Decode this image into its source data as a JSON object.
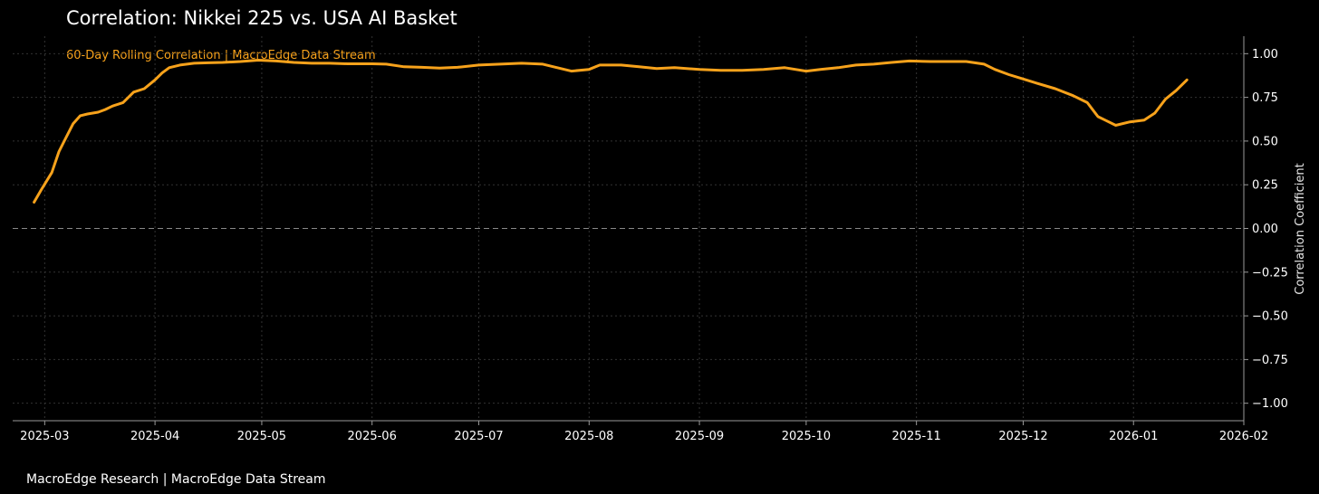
{
  "chart_data": {
    "type": "line",
    "title": "Correlation: Nikkei 225 vs. USA AI Basket",
    "subtitle": "60-Day Rolling Correlation | MacroEdge Data Stream",
    "xlabel": "",
    "ylabel": "Correlation Coefficient",
    "ylim": [
      -1.1,
      1.1
    ],
    "xlim": [
      "2025-02-20",
      "2026-02-01"
    ],
    "x_ticks": [
      "2025-03",
      "2025-04",
      "2025-05",
      "2025-06",
      "2025-07",
      "2025-08",
      "2025-09",
      "2025-10",
      "2025-11",
      "2025-12",
      "2026-01",
      "2026-02"
    ],
    "y_ticks": [
      1.0,
      0.75,
      0.5,
      0.25,
      0.0,
      -0.25,
      -0.5,
      -0.75,
      -1.0
    ],
    "y_tick_labels": [
      "1.00",
      "0.75",
      "0.50",
      "0.25",
      "0.00",
      "−0.25",
      "−0.50",
      "−0.75",
      "−1.00"
    ],
    "grid": true,
    "reference_line": 0.0,
    "line_color": "#F7A21B",
    "series": [
      {
        "x": [
          "2025-02-26",
          "2025-02-28",
          "2025-03-03",
          "2025-03-05",
          "2025-03-07",
          "2025-03-09",
          "2025-03-11",
          "2025-03-13",
          "2025-03-16",
          "2025-03-18",
          "2025-03-20",
          "2025-03-23",
          "2025-03-26",
          "2025-03-29",
          "2025-04-01",
          "2025-04-03",
          "2025-04-05",
          "2025-04-08",
          "2025-04-12",
          "2025-04-16",
          "2025-04-20",
          "2025-04-25",
          "2025-04-30",
          "2025-05-05",
          "2025-05-10",
          "2025-05-15",
          "2025-05-20",
          "2025-05-25",
          "2025-06-01",
          "2025-06-05",
          "2025-06-10",
          "2025-06-15",
          "2025-06-20",
          "2025-06-25",
          "2025-07-01",
          "2025-07-07",
          "2025-07-13",
          "2025-07-19",
          "2025-07-22",
          "2025-07-27",
          "2025-08-01",
          "2025-08-04",
          "2025-08-10",
          "2025-08-15",
          "2025-08-20",
          "2025-08-25",
          "2025-09-01",
          "2025-09-07",
          "2025-09-13",
          "2025-09-19",
          "2025-09-25",
          "2025-10-01",
          "2025-10-05",
          "2025-10-10",
          "2025-10-15",
          "2025-10-20",
          "2025-10-25",
          "2025-10-30",
          "2025-11-05",
          "2025-11-10",
          "2025-11-15",
          "2025-11-20",
          "2025-11-23",
          "2025-11-27",
          "2025-12-01",
          "2025-12-05",
          "2025-12-10",
          "2025-12-15",
          "2025-12-19",
          "2025-12-22",
          "2025-12-24",
          "2025-12-27",
          "2025-12-31",
          "2026-01-04",
          "2026-01-07",
          "2026-01-10",
          "2026-01-13",
          "2026-01-16"
        ],
        "values": [
          0.15,
          0.22,
          0.32,
          0.44,
          0.52,
          0.6,
          0.645,
          0.655,
          0.665,
          0.68,
          0.7,
          0.72,
          0.78,
          0.8,
          0.85,
          0.89,
          0.92,
          0.935,
          0.945,
          0.948,
          0.95,
          0.955,
          0.963,
          0.958,
          0.95,
          0.945,
          0.945,
          0.942,
          0.942,
          0.94,
          0.925,
          0.922,
          0.918,
          0.922,
          0.935,
          0.94,
          0.945,
          0.94,
          0.925,
          0.9,
          0.91,
          0.935,
          0.935,
          0.925,
          0.915,
          0.92,
          0.91,
          0.905,
          0.905,
          0.91,
          0.92,
          0.9,
          0.91,
          0.92,
          0.935,
          0.94,
          0.95,
          0.958,
          0.955,
          0.955,
          0.955,
          0.94,
          0.91,
          0.88,
          0.855,
          0.83,
          0.8,
          0.76,
          0.72,
          0.64,
          0.62,
          0.59,
          0.61,
          0.62,
          0.66,
          0.74,
          0.79,
          0.85
        ]
      }
    ]
  },
  "footer": "MacroEdge Research | MacroEdge Data Stream"
}
